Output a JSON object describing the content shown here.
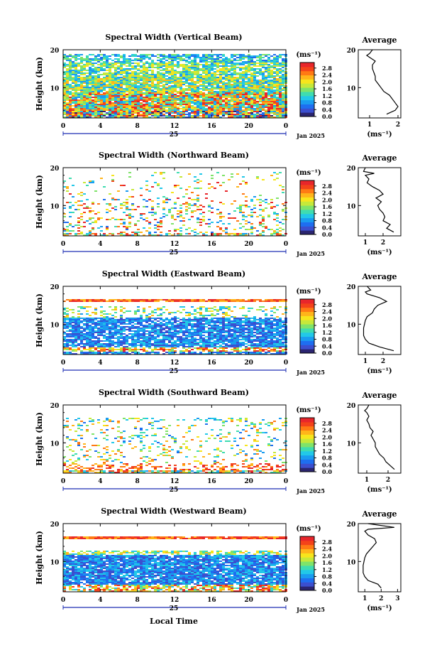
{
  "colors": {
    "colormap": [
      "#2b2570",
      "#3b4fcf",
      "#1e6ef0",
      "#1a9cf0",
      "#22c8e8",
      "#3fdcb0",
      "#7fe36a",
      "#c6e83a",
      "#f7e51c",
      "#ffb51a",
      "#ff7a14",
      "#f4431a",
      "#e8262b"
    ],
    "frame": "#000000",
    "time_axis": "#1f2fb3"
  },
  "common": {
    "y_label": "Height (km)",
    "y_ticks": [
      10,
      20
    ],
    "x_ticks": [
      "0",
      "4",
      "8",
      "12",
      "16",
      "20",
      "0"
    ],
    "day_label": "25",
    "month_label": "Jan 2025",
    "colorbar_unit": "(ms⁻¹)",
    "colorbar_ticks": [
      "0.0",
      "0.4",
      "0.8",
      "1.2",
      "1.6",
      "2.0",
      "2.4",
      "2.8"
    ],
    "avg_title": "Average",
    "avg_unit": "(ms⁻¹)",
    "x_axis_label": "Local Time"
  },
  "panels": [
    {
      "title": "Spectral Width (Vertical Beam)",
      "avg_ticks": [
        "1",
        "2"
      ],
      "avg_range": [
        0.6,
        2.1
      ]
    },
    {
      "title": "Spectral Width (Northward Beam)",
      "avg_ticks": [
        "1",
        "2"
      ],
      "avg_range": [
        0.6,
        3.0
      ]
    },
    {
      "title": "Spectral Width (Eastward Beam)",
      "avg_ticks": [
        "1",
        "2"
      ],
      "avg_range": [
        0.6,
        3.0
      ]
    },
    {
      "title": "Spectral Width (Southward Beam)",
      "avg_ticks": [
        "1",
        "2"
      ],
      "avg_range": [
        0.6,
        2.6
      ]
    },
    {
      "title": "Spectral Width (Westward Beam)",
      "avg_ticks": [
        "1",
        "2",
        "3"
      ],
      "avg_range": [
        0.6,
        3.2
      ]
    }
  ],
  "chart_data": [
    {
      "type": "heatmap",
      "title": "Spectral Width (Vertical Beam)",
      "ylabel": "Height (km)",
      "ylim": [
        2,
        20
      ],
      "xlim": [
        0,
        24
      ],
      "clim": [
        0.0,
        3.0
      ],
      "x_tick_labels": [
        "0",
        "4",
        "8",
        "12",
        "16",
        "20",
        "0"
      ],
      "colorbar_label": "(ms⁻¹)"
    },
    {
      "type": "line",
      "title": "Average",
      "xlabel": "(ms⁻¹)",
      "ylim": [
        2,
        20
      ],
      "xlim": [
        0.6,
        2.1
      ],
      "x": [
        1.6,
        1.9,
        2.0,
        1.9,
        1.8,
        1.7,
        1.5,
        1.4,
        1.3,
        1.2,
        1.2,
        1.15,
        1.1,
        1.1,
        1.2,
        1.0,
        0.9,
        1.0,
        1.1
      ],
      "y": [
        3,
        4,
        5,
        6,
        7,
        8,
        9,
        10,
        11,
        12,
        13,
        14,
        15,
        16,
        17,
        18,
        18.5,
        19,
        20
      ]
    },
    {
      "type": "heatmap",
      "title": "Spectral Width (Northward Beam)",
      "ylabel": "Height (km)",
      "ylim": [
        2,
        20
      ],
      "xlim": [
        0,
        24
      ],
      "clim": [
        0.0,
        3.0
      ],
      "x_tick_labels": [
        "0",
        "4",
        "8",
        "12",
        "16",
        "20",
        "0"
      ],
      "colorbar_label": "(ms⁻¹)"
    },
    {
      "type": "line",
      "title": "Average",
      "xlabel": "(ms⁻¹)",
      "ylim": [
        2,
        20
      ],
      "xlim": [
        0.6,
        3.0
      ],
      "x": [
        2.6,
        2.2,
        2.4,
        2.0,
        2.1,
        2.0,
        1.8,
        1.7,
        1.9,
        1.6,
        2.0,
        1.8,
        1.4,
        1.1,
        1.2,
        1.0,
        1.5,
        0.9,
        1.0
      ],
      "y": [
        3,
        4,
        5,
        6,
        7,
        8,
        9,
        10,
        11,
        12,
        13,
        14,
        15,
        16,
        17,
        18,
        18.5,
        19,
        20
      ]
    },
    {
      "type": "heatmap",
      "title": "Spectral Width (Eastward Beam)",
      "ylabel": "Height (km)",
      "ylim": [
        2,
        20
      ],
      "xlim": [
        0,
        24
      ],
      "clim": [
        0.0,
        3.0
      ],
      "x_tick_labels": [
        "0",
        "4",
        "8",
        "12",
        "16",
        "20",
        "0"
      ],
      "colorbar_label": "(ms⁻¹)"
    },
    {
      "type": "line",
      "title": "Average",
      "xlabel": "(ms⁻¹)",
      "ylim": [
        2,
        20
      ],
      "xlim": [
        0.6,
        3.0
      ],
      "x": [
        2.6,
        1.8,
        1.2,
        1.0,
        0.9,
        0.9,
        0.9,
        0.95,
        1.0,
        1.1,
        1.4,
        1.5,
        1.7,
        2.2,
        1.8,
        1.1,
        1.0,
        1.3,
        1.1
      ],
      "y": [
        3,
        4,
        5,
        6,
        7,
        8,
        9,
        10,
        11,
        12,
        13,
        14,
        15,
        16,
        17,
        18,
        18.5,
        19,
        20
      ]
    },
    {
      "type": "heatmap",
      "title": "Spectral Width (Southward Beam)",
      "ylabel": "Height (km)",
      "ylim": [
        2,
        20
      ],
      "xlim": [
        0,
        24
      ],
      "clim": [
        0.0,
        3.0
      ],
      "x_tick_labels": [
        "0",
        "4",
        "8",
        "12",
        "16",
        "20",
        "0"
      ],
      "colorbar_label": "(ms⁻¹)"
    },
    {
      "type": "line",
      "title": "Average",
      "xlabel": "(ms⁻¹)",
      "ylim": [
        2,
        20
      ],
      "xlim": [
        0.6,
        2.6
      ],
      "x": [
        2.3,
        2.1,
        1.9,
        1.8,
        1.6,
        1.5,
        1.4,
        1.4,
        1.3,
        1.2,
        1.3,
        1.15,
        1.1,
        1.0,
        1.1,
        1.0,
        0.9,
        1.0,
        1.1
      ],
      "y": [
        3,
        4,
        5,
        6,
        7,
        8,
        9,
        10,
        11,
        12,
        13,
        14,
        15,
        16,
        17,
        18,
        18.5,
        19,
        20
      ]
    },
    {
      "type": "heatmap",
      "title": "Spectral Width (Westward Beam)",
      "ylabel": "Height (km)",
      "ylim": [
        2,
        20
      ],
      "xlim": [
        0,
        24
      ],
      "clim": [
        0.0,
        3.0
      ],
      "x_tick_labels": [
        "0",
        "4",
        "8",
        "12",
        "16",
        "20",
        "0"
      ],
      "colorbar_label": "(ms⁻¹)",
      "xlabel": "Local Time"
    },
    {
      "type": "line",
      "title": "Average",
      "xlabel": "(ms⁻¹)",
      "ylim": [
        2,
        20
      ],
      "xlim": [
        0.6,
        3.2
      ],
      "x": [
        2.0,
        1.8,
        1.2,
        1.0,
        0.9,
        0.9,
        0.9,
        0.95,
        1.0,
        1.1,
        1.3,
        1.5,
        1.7,
        1.6,
        1.2,
        1.0,
        1.2,
        2.8,
        1.2
      ],
      "y": [
        3,
        4,
        5,
        6,
        7,
        8,
        9,
        10,
        11,
        12,
        13,
        14,
        15,
        16,
        17,
        18,
        18.5,
        19,
        20
      ]
    }
  ]
}
